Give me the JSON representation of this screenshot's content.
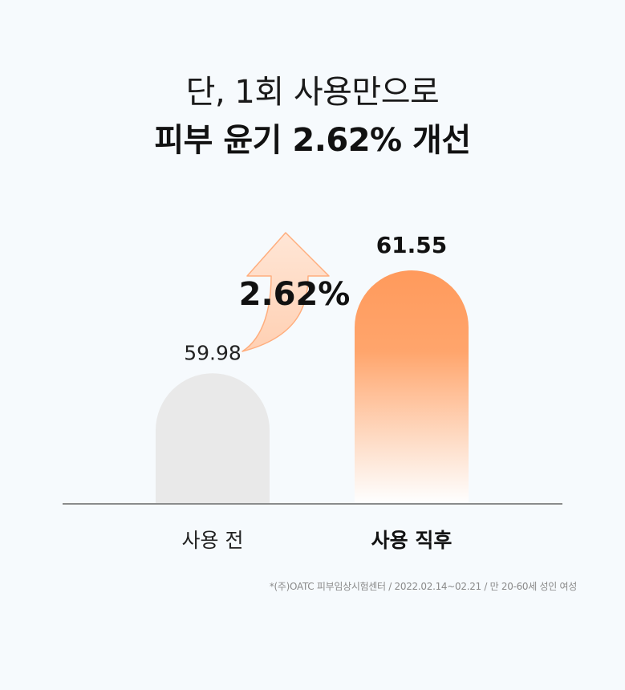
{
  "headline": {
    "line1": "단, 1회 사용만으로",
    "line2": "피부 윤기 2.62% 개선"
  },
  "chart_data": {
    "type": "bar",
    "categories": [
      "사용 전",
      "사용 직후"
    ],
    "values": [
      59.98,
      61.55
    ],
    "value_labels": [
      "59.98",
      "61.55"
    ],
    "change_label": "2.62%",
    "colors": {
      "before_bar": "#e8e8e8",
      "after_bar_top": "#ff9a5c",
      "after_bar_bottom": "#fff4ec",
      "arrow_fill": "#ffd9c2",
      "arrow_stroke": "#ffae7e",
      "baseline": "#444444"
    },
    "grid": false,
    "legend": "none"
  },
  "footnote": "*(주)OATC 피부임상시험센터 / 2022.02.14~02.21 / 만 20-60세 성인 여성"
}
